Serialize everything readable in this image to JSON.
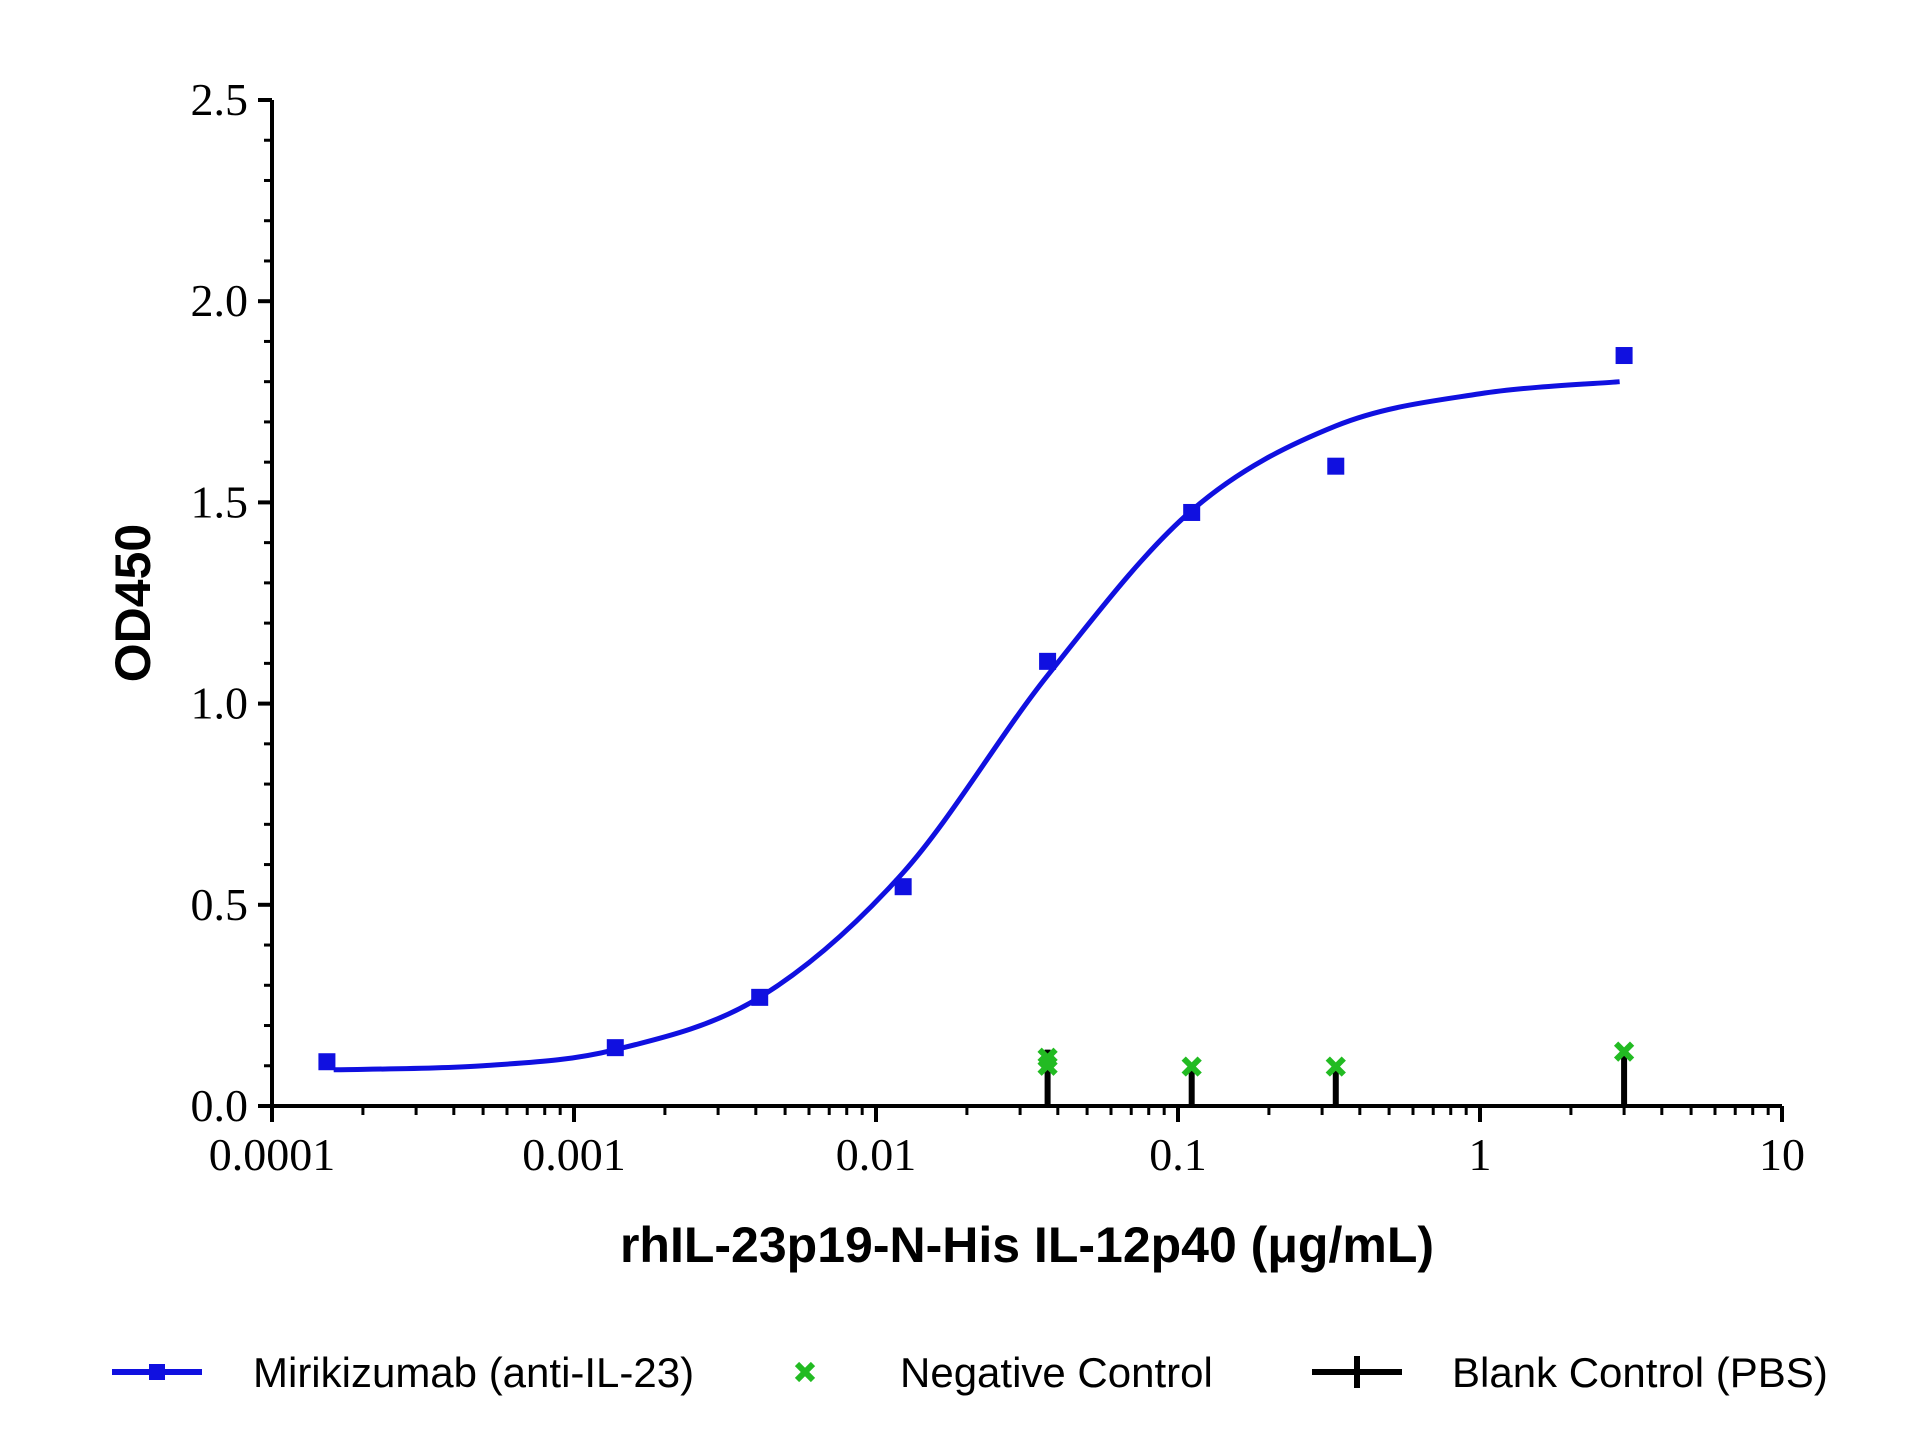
{
  "chart_data": {
    "type": "scatter",
    "xlabel": "rhIL-23p19-N-His IL-12p40 (μg/mL)",
    "ylabel": "OD450",
    "xscale": "log",
    "xlim": [
      0.0001,
      10
    ],
    "ylim": [
      0,
      2.5
    ],
    "xticks": [
      "0.0001",
      "0.001",
      "0.01",
      "0.1",
      "1",
      "10"
    ],
    "yticks": [
      "0.0",
      "0.5",
      "1.0",
      "1.5",
      "2.0",
      "2.5"
    ],
    "grid": false,
    "legend_position": "bottom",
    "series": [
      {
        "name": "Mirikizumab (anti-IL-23)",
        "color": "#1010e0",
        "marker": "square",
        "fit": "4PL sigmoid",
        "points": [
          {
            "x": 0.000152,
            "y": 0.11
          },
          {
            "x": 0.00137,
            "y": 0.145
          },
          {
            "x": 0.00412,
            "y": 0.27
          },
          {
            "x": 0.0123,
            "y": 0.545
          },
          {
            "x": 0.037,
            "y": 1.105
          },
          {
            "x": 0.111,
            "y": 1.475
          },
          {
            "x": 0.333,
            "y": 1.59
          },
          {
            "x": 3.0,
            "y": 1.865
          }
        ],
        "curve": [
          {
            "x": 0.00016,
            "y": 0.09
          },
          {
            "x": 0.0005,
            "y": 0.1
          },
          {
            "x": 0.00137,
            "y": 0.14
          },
          {
            "x": 0.00412,
            "y": 0.27
          },
          {
            "x": 0.0123,
            "y": 0.58
          },
          {
            "x": 0.037,
            "y": 1.07
          },
          {
            "x": 0.111,
            "y": 1.48
          },
          {
            "x": 0.333,
            "y": 1.69
          },
          {
            "x": 1.0,
            "y": 1.77
          },
          {
            "x": 2.9,
            "y": 1.8
          }
        ]
      },
      {
        "name": "Negative Control",
        "color": "#22bb22",
        "marker": "x",
        "points": [
          {
            "x": 0.037,
            "y": 0.12
          },
          {
            "x": 0.037,
            "y": 0.1
          },
          {
            "x": 0.111,
            "y": 0.098
          },
          {
            "x": 0.333,
            "y": 0.098
          },
          {
            "x": 3.0,
            "y": 0.135
          }
        ]
      },
      {
        "name": "Blank Control (PBS)",
        "color": "#000000",
        "marker": "bar",
        "points": [
          {
            "x": 0.037,
            "y": 0.065,
            "err": 0.075
          },
          {
            "x": 0.111,
            "y": 0.04,
            "err": 0.05
          },
          {
            "x": 0.333,
            "y": 0.05,
            "err": 0.055
          },
          {
            "x": 3.0,
            "y": 0.06,
            "err": 0.065
          }
        ]
      }
    ]
  }
}
